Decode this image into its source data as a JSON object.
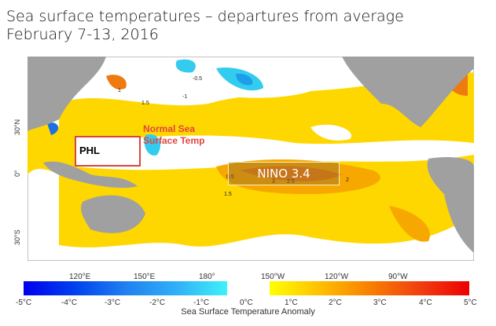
{
  "title": {
    "line1": "Sea surface temperatures – departures from average",
    "line2": "February 7-13, 2016"
  },
  "map": {
    "lat_labels": [
      "30°N",
      "0°",
      "30°S"
    ],
    "lon_labels": [
      "120°E",
      "150°E",
      "180°",
      "150°W",
      "120°W",
      "90°W"
    ],
    "contour_labels": [
      "0.5",
      "1",
      "1.5",
      "2",
      "2.5",
      "3",
      "-0.5",
      "-1"
    ],
    "annotations": {
      "phl": "PHL",
      "normal": [
        "Normal Sea",
        "Surface Temp"
      ],
      "nino": "NINO 3.4"
    },
    "colors": {
      "land": "#a0a0a0",
      "warm": "#ffd700",
      "warm2": "#f7a800",
      "hot": "#ee7a10",
      "cool": "#33ccee",
      "cold": "#1e70e0",
      "highlight": "#d9453f"
    }
  },
  "colorbar": {
    "ticks": [
      "-5°C",
      "-4°C",
      "-3°C",
      "-2°C",
      "-1°C",
      "0°C",
      "1°C",
      "2°C",
      "3°C",
      "4°C",
      "5°C"
    ],
    "title": "Sea Surface Temperature Anomaly"
  }
}
